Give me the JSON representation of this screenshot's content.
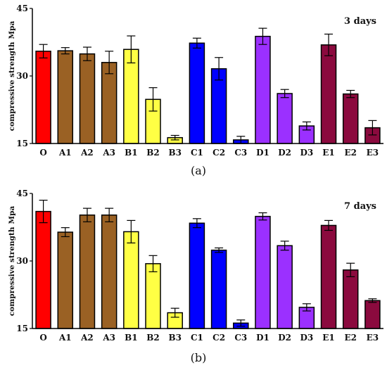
{
  "chart_data": [
    {
      "type": "bar",
      "annotation": "3 days",
      "caption": "(a)",
      "ylabel": "compressive strength",
      "ylabel_unit": "Mpa",
      "ylim": [
        15,
        45
      ],
      "yticks": [
        "15",
        "30",
        "45"
      ],
      "categories": [
        "O",
        "A1",
        "A2",
        "A3",
        "B1",
        "B2",
        "B3",
        "C1",
        "C2",
        "C3",
        "D1",
        "D2",
        "D3",
        "E1",
        "E2",
        "E3"
      ],
      "values": [
        35.5,
        35.6,
        34.9,
        33.0,
        35.9,
        24.8,
        16.3,
        37.3,
        31.6,
        15.8,
        38.8,
        26.1,
        18.9,
        36.9,
        26.0,
        18.5
      ],
      "errors": [
        1.5,
        0.7,
        1.5,
        2.5,
        3.0,
        2.6,
        0.5,
        1.1,
        2.5,
        0.8,
        1.8,
        0.9,
        0.9,
        2.4,
        0.8,
        1.6
      ]
    },
    {
      "type": "bar",
      "annotation": "7 days",
      "caption": "(b)",
      "ylabel": "compressive strength",
      "ylabel_unit": "Mpa",
      "ylim": [
        15,
        45
      ],
      "yticks": [
        "15",
        "30",
        "45"
      ],
      "categories": [
        "O",
        "A1",
        "A2",
        "A3",
        "B1",
        "B2",
        "B3",
        "C1",
        "C2",
        "C3",
        "D1",
        "D2",
        "D3",
        "E1",
        "E2",
        "E3"
      ],
      "values": [
        41.0,
        36.4,
        40.2,
        40.2,
        36.5,
        29.4,
        18.5,
        38.4,
        32.4,
        16.2,
        39.9,
        33.4,
        19.7,
        37.9,
        28.0,
        21.2
      ],
      "errors": [
        2.5,
        1.0,
        1.5,
        1.5,
        2.5,
        1.8,
        1.0,
        1.0,
        0.5,
        0.7,
        0.8,
        1.0,
        0.8,
        1.1,
        1.5,
        0.4
      ]
    }
  ],
  "colors": [
    "#ff0000",
    "#9a6124",
    "#9a6124",
    "#9a6124",
    "#ffff44",
    "#ffff44",
    "#ffff44",
    "#0000ff",
    "#0000ff",
    "#0000ff",
    "#9b30ff",
    "#9b30ff",
    "#9b30ff",
    "#8b0a3e",
    "#8b0a3e",
    "#8b0a3e"
  ]
}
